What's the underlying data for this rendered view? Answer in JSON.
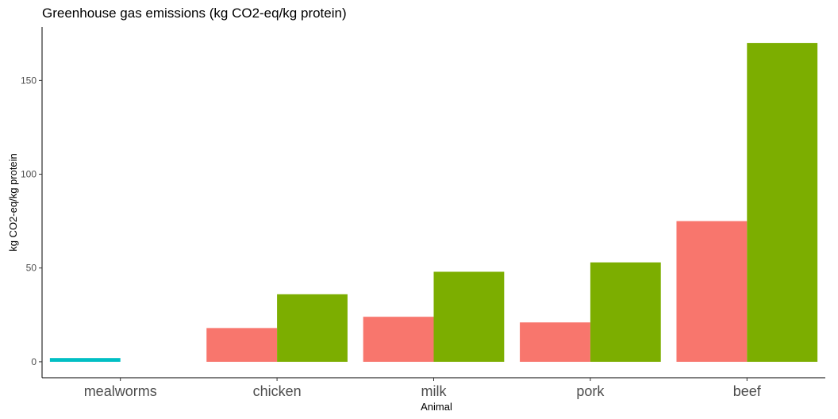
{
  "chart_data": {
    "type": "bar",
    "title": "Greenhouse gas emissions (kg CO2-eq/kg protein)",
    "xlabel": "Animal",
    "ylabel": "kg CO2-eq/kg protein",
    "categories": [
      "mealworms",
      "chicken",
      "milk",
      "pork",
      "beef"
    ],
    "series": [
      {
        "color": "#00BFC4",
        "values": [
          2,
          null,
          null,
          null,
          null
        ]
      },
      {
        "color": "#F8766D",
        "values": [
          null,
          18,
          24,
          21,
          75
        ]
      },
      {
        "color": "#7CAE00",
        "values": [
          null,
          36,
          48,
          53,
          170
        ]
      }
    ],
    "yticks": [
      0,
      50,
      100,
      150
    ],
    "ylim": [
      -8.5,
      178.5
    ],
    "grid": false,
    "legend": "none"
  }
}
